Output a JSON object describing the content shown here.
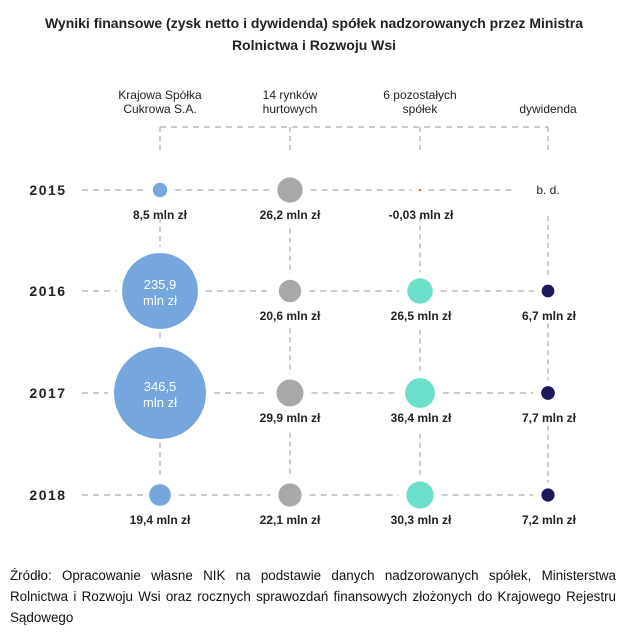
{
  "title_lines": [
    "Wyniki finansowe (zysk netto i dywidenda) spółek nadzorowanych przez Ministra",
    "Rolnictwa i Rozwoju Wsi"
  ],
  "source": "Źródło: Opracowanie własne NIK na podstawie danych nadzorowanych spółek, Ministerstwa Rolnictwa i Rozwoju Wsi oraz rocznych sprawozdań finansowych złożonych do Krajowego Rejestru Sądowego",
  "chart_data": {
    "type": "bubble",
    "title": "Wyniki finansowe (zysk netto i dywidenda) spółek nadzorowanych przez Ministra Rolnictwa i Rozwoju Wsi",
    "unit": "mln zł",
    "years": [
      "2015",
      "2016",
      "2017",
      "2018"
    ],
    "series": [
      {
        "name": "Krajowa Spółka Cukrowa S.A.",
        "name_lines": [
          "Krajowa Spółka",
          "Cukrowa S.A."
        ],
        "color": "#75a7de",
        "values": [
          8.5,
          235.9,
          346.5,
          19.4
        ],
        "labels": [
          "8,5 mln zł",
          "235,9 mln zł",
          "346,5 mln zł",
          "19,4 mln zł"
        ],
        "label_lines": [
          [
            "8,5 mln zł"
          ],
          [
            "235,9",
            "mln zł"
          ],
          [
            "346,5",
            "mln zł"
          ],
          [
            "19,4 mln zł"
          ]
        ]
      },
      {
        "name": "14 rynków hurtowych",
        "name_lines": [
          "14 rynków",
          "hurtowych"
        ],
        "color": "#a8a8aa",
        "values": [
          26.2,
          20.6,
          29.9,
          22.1
        ],
        "labels": [
          "26,2 mln zł",
          "20,6 mln zł",
          "29,9 mln zł",
          "22,1 mln zł"
        ],
        "label_lines": [
          [
            "26,2 mln zł"
          ],
          [
            "20,6 mln zł"
          ],
          [
            "29,9 mln zł"
          ],
          [
            "22,1 mln zł"
          ]
        ]
      },
      {
        "name": "6 pozostałych spółek",
        "name_lines": [
          "6 pozostałych",
          "spółek"
        ],
        "color": "#6cdfcb",
        "values": [
          -0.03,
          26.5,
          36.4,
          30.3
        ],
        "labels": [
          "-0,03 mln zł",
          "26,5 mln zł",
          "36,4 mln zł",
          "30,3 mln zł"
        ],
        "label_lines": [
          [
            "-0,03 mln zł"
          ],
          [
            "26,5 mln zł"
          ],
          [
            "36,4 mln zł"
          ],
          [
            "30,3 mln zł"
          ]
        ]
      },
      {
        "name": "dywidenda",
        "name_lines": [
          "dywidenda"
        ],
        "color": "#1d1a5c",
        "values": [
          null,
          6.7,
          7.7,
          7.2
        ],
        "labels": [
          "b. d.",
          "6,7 mln zł",
          "7,7 mln zł",
          "7,2 mln zł"
        ],
        "label_lines": [
          [
            "b. d."
          ],
          [
            "6,7 mln zł"
          ],
          [
            "7,7 mln zł"
          ],
          [
            "7,2 mln zł"
          ]
        ]
      }
    ],
    "negative_marker_color": "#e07a2f"
  }
}
